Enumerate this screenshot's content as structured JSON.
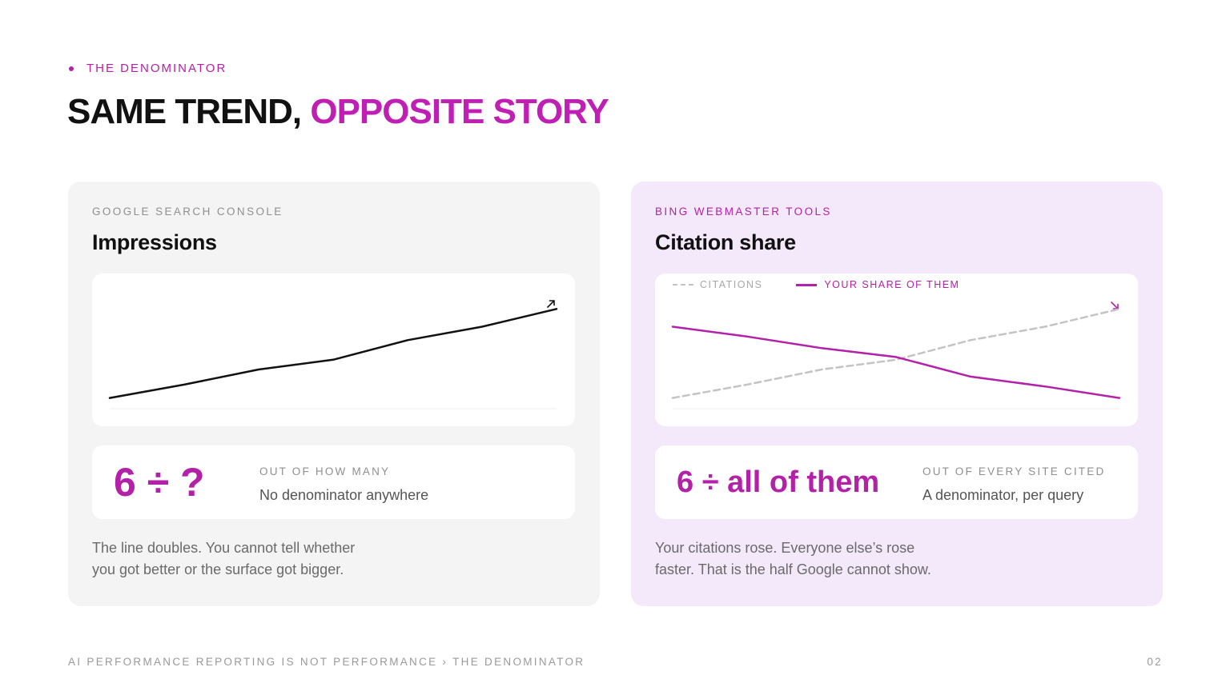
{
  "eyebrow": "THE DENOMINATOR",
  "headline": {
    "part1": "SAME TREND,",
    "part2": "OPPOSITE STORY"
  },
  "left_card": {
    "source": "GOOGLE SEARCH CONSOLE",
    "metric": "Impressions",
    "trend_icon": "arrow-up-right-icon",
    "stat_value": "6 ÷ ?",
    "stat_caption": "OUT OF HOW MANY",
    "stat_sub": "No denominator anywhere",
    "note_line1": "The line doubles. You cannot tell whether",
    "note_line2": "you got better or the surface got bigger."
  },
  "right_card": {
    "source": "BING WEBMASTER TOOLS",
    "metric": "Citation share",
    "trend_icon": "arrow-down-right-icon",
    "legend": [
      "CITATIONS",
      "YOUR SHARE OF THEM"
    ],
    "stat_value": "6 ÷ all of them",
    "stat_caption": "OUT OF EVERY SITE CITED",
    "stat_sub": "A denominator, per query",
    "note_line1": "Your citations rose. Everyone else’s rose",
    "note_line2": "faster. That is the half Google cannot show."
  },
  "footer": "AI PERFORMANCE REPORTING IS NOT PERFORMANCE › THE DENOMINATOR",
  "page_number": "02",
  "colors": {
    "accent": "#b321a8",
    "headline_accent": "#c01fb3",
    "ink": "#111111",
    "dashed_series": "#c4c4c4",
    "left_card_bg": "#f4f4f4",
    "right_card_bg": "#f4e8fb"
  },
  "chart_data": [
    {
      "type": "line",
      "title": "Impressions",
      "x": [
        1,
        2,
        3,
        4,
        5,
        6,
        7
      ],
      "series": [
        {
          "values": [
            1.0,
            1.15,
            1.32,
            1.43,
            1.65,
            1.8,
            2.0
          ],
          "color": "#111111",
          "style": "solid"
        }
      ],
      "ylim": [
        0.88,
        2.2
      ],
      "grid": false,
      "baseline": true,
      "axis_labels_shown": false
    },
    {
      "type": "line",
      "title": "Citation share",
      "x": [
        1,
        2,
        3,
        4,
        5,
        6,
        7
      ],
      "series": [
        {
          "name": "CITATIONS",
          "values": [
            1.0,
            1.15,
            1.32,
            1.43,
            1.65,
            1.8,
            2.0
          ],
          "color": "#c4c4c4",
          "style": "dashed"
        },
        {
          "name": "YOUR SHARE OF THEM",
          "values": [
            1.8,
            1.69,
            1.56,
            1.46,
            1.24,
            1.13,
            1.0
          ],
          "color": "#b321a8",
          "style": "solid"
        }
      ],
      "ylim": [
        0.88,
        2.2
      ],
      "legend": "top-left",
      "grid": false,
      "baseline": true,
      "axis_labels_shown": false
    }
  ]
}
